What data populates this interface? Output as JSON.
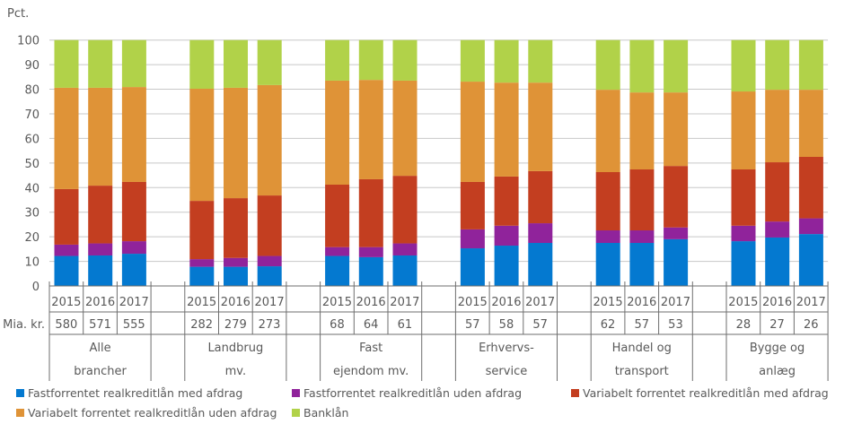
{
  "chart_data": {
    "type": "bar",
    "stacked": true,
    "ylabel": "Pct.",
    "ylim": [
      0,
      100
    ],
    "yticks": [
      "0",
      "10",
      "20",
      "30",
      "40",
      "50",
      "60",
      "70",
      "80",
      "90",
      "100"
    ],
    "grid": true,
    "legend_position": "bottom",
    "row_label_amount": "Mia. kr.",
    "groups": [
      {
        "name_lines": [
          "Alle",
          "brancher"
        ],
        "years": [
          "2015",
          "2016",
          "2017"
        ],
        "amounts": [
          "580",
          "571",
          "555"
        ]
      },
      {
        "name_lines": [
          "Landbrug",
          "mv."
        ],
        "years": [
          "2015",
          "2016",
          "2017"
        ],
        "amounts": [
          "282",
          "279",
          "273"
        ]
      },
      {
        "name_lines": [
          "Fast",
          "ejendom mv."
        ],
        "years": [
          "2015",
          "2016",
          "2017"
        ],
        "amounts": [
          "68",
          "64",
          "61"
        ]
      },
      {
        "name_lines": [
          "Erhvervs-",
          "service"
        ],
        "years": [
          "2015",
          "2016",
          "2017"
        ],
        "amounts": [
          "57",
          "58",
          "57"
        ]
      },
      {
        "name_lines": [
          "Handel og",
          "transport"
        ],
        "years": [
          "2015",
          "2016",
          "2017"
        ],
        "amounts": [
          "62",
          "57",
          "53"
        ]
      },
      {
        "name_lines": [
          "Bygge og",
          "anlæg"
        ],
        "years": [
          "2015",
          "2016",
          "2017"
        ],
        "amounts": [
          "28",
          "27",
          "26"
        ]
      }
    ],
    "series": [
      {
        "name": "Fastforrentet realkreditlån med afdrag",
        "color": "#0479D0",
        "values": [
          12.2,
          12.4,
          13.1,
          7.8,
          7.8,
          8.0,
          12.2,
          11.7,
          12.4,
          15.3,
          16.4,
          17.5,
          17.5,
          17.5,
          19.0,
          18.2,
          19.7,
          21.1
        ]
      },
      {
        "name": "Fastforrentet realkreditlån uden afdrag",
        "color": "#90239B",
        "values": [
          4.6,
          4.9,
          5.1,
          3.1,
          3.6,
          4.2,
          3.6,
          4.1,
          4.9,
          7.7,
          8.1,
          8.0,
          5.1,
          5.1,
          4.8,
          6.3,
          6.5,
          6.4
        ]
      },
      {
        "name": "Variabelt forrentet realkreditlån med afdrag",
        "color": "#C33E20",
        "values": [
          22.6,
          23.5,
          24.1,
          23.7,
          24.3,
          24.6,
          25.4,
          27.6,
          27.5,
          19.3,
          20.0,
          21.2,
          23.7,
          24.8,
          25.0,
          22.9,
          24.1,
          25.0
        ]
      },
      {
        "name": "Variabelt forrentet realkreditlån uden afdrag",
        "color": "#DF9337",
        "values": [
          41.2,
          39.8,
          38.6,
          45.6,
          44.9,
          44.9,
          42.3,
          40.4,
          38.7,
          40.8,
          38.2,
          36.0,
          33.5,
          31.3,
          29.9,
          31.7,
          29.5,
          27.3
        ]
      },
      {
        "name": "Banklån",
        "color": "#B1D249",
        "values": [
          19.4,
          19.4,
          19.1,
          19.8,
          19.4,
          18.3,
          16.5,
          16.2,
          16.5,
          16.9,
          17.3,
          17.3,
          20.2,
          21.3,
          21.3,
          20.9,
          20.2,
          20.2
        ]
      }
    ]
  }
}
